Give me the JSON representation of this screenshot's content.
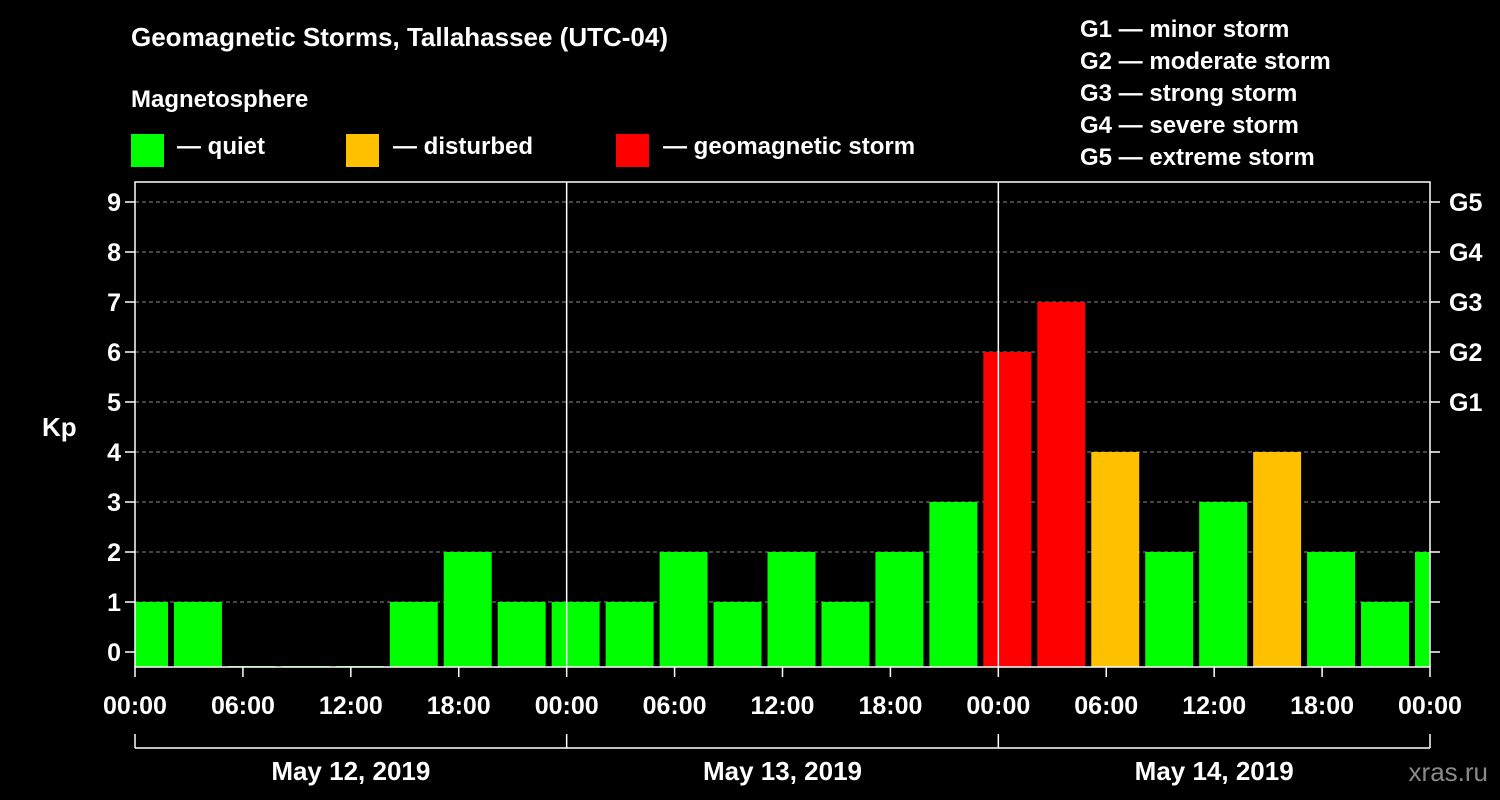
{
  "title": "Geomagnetic Storms, Tallahassee (UTC-04)",
  "subtitle": "Magnetosphere",
  "legend": [
    {
      "label": "— quiet",
      "color": "#00ff00"
    },
    {
      "label": "— disturbed",
      "color": "#ffc000"
    },
    {
      "label": "— geomagnetic storm",
      "color": "#ff0000"
    }
  ],
  "storm_scale": [
    "G1 — minor storm",
    "G2 — moderate storm",
    "G3 — strong storm",
    "G4 — severe storm",
    "G5 — extreme storm"
  ],
  "watermark": "xras.ru",
  "colors": {
    "quiet": "#00ff00",
    "disturbed": "#ffc000",
    "storm": "#ff0000",
    "background": "#000000",
    "grid": "#888888"
  },
  "chart_data": {
    "type": "bar",
    "title": "Geomagnetic Storms, Tallahassee (UTC-04)",
    "ylabel": "Kp",
    "ylim": [
      0,
      9
    ],
    "yticks": [
      "0",
      "1",
      "2",
      "3",
      "4",
      "5",
      "6",
      "7",
      "8",
      "9"
    ],
    "right_ticks": [
      {
        "kp": 5,
        "label": "G1"
      },
      {
        "kp": 6,
        "label": "G2"
      },
      {
        "kp": 7,
        "label": "G3"
      },
      {
        "kp": 8,
        "label": "G4"
      },
      {
        "kp": 9,
        "label": "G5"
      }
    ],
    "x_range_hours": [
      0,
      72
    ],
    "xticks": [
      "00:00",
      "06:00",
      "12:00",
      "18:00",
      "00:00",
      "06:00",
      "12:00",
      "18:00",
      "00:00",
      "06:00",
      "12:00",
      "18:00",
      "00:00"
    ],
    "days": [
      "May 12, 2019",
      "May 13, 2019",
      "May 14, 2019"
    ],
    "bars": [
      {
        "start": 0,
        "end": 2,
        "kp": 1,
        "level": "quiet"
      },
      {
        "start": 2,
        "end": 5,
        "kp": 1,
        "level": "quiet"
      },
      {
        "start": 5,
        "end": 8,
        "kp": 0,
        "level": "quiet"
      },
      {
        "start": 8,
        "end": 11,
        "kp": 0,
        "level": "quiet"
      },
      {
        "start": 11,
        "end": 14,
        "kp": 0,
        "level": "quiet"
      },
      {
        "start": 14,
        "end": 17,
        "kp": 1,
        "level": "quiet"
      },
      {
        "start": 17,
        "end": 20,
        "kp": 2,
        "level": "quiet"
      },
      {
        "start": 20,
        "end": 23,
        "kp": 1,
        "level": "quiet"
      },
      {
        "start": 23,
        "end": 26,
        "kp": 1,
        "level": "quiet"
      },
      {
        "start": 26,
        "end": 29,
        "kp": 1,
        "level": "quiet"
      },
      {
        "start": 29,
        "end": 32,
        "kp": 2,
        "level": "quiet"
      },
      {
        "start": 32,
        "end": 35,
        "kp": 1,
        "level": "quiet"
      },
      {
        "start": 35,
        "end": 38,
        "kp": 2,
        "level": "quiet"
      },
      {
        "start": 38,
        "end": 41,
        "kp": 1,
        "level": "quiet"
      },
      {
        "start": 41,
        "end": 44,
        "kp": 2,
        "level": "quiet"
      },
      {
        "start": 44,
        "end": 47,
        "kp": 3,
        "level": "quiet"
      },
      {
        "start": 47,
        "end": 50,
        "kp": 6,
        "level": "storm"
      },
      {
        "start": 50,
        "end": 53,
        "kp": 7,
        "level": "storm"
      },
      {
        "start": 53,
        "end": 56,
        "kp": 4,
        "level": "disturbed"
      },
      {
        "start": 56,
        "end": 59,
        "kp": 2,
        "level": "quiet"
      },
      {
        "start": 59,
        "end": 62,
        "kp": 3,
        "level": "quiet"
      },
      {
        "start": 62,
        "end": 65,
        "kp": 4,
        "level": "disturbed"
      },
      {
        "start": 65,
        "end": 68,
        "kp": 2,
        "level": "quiet"
      },
      {
        "start": 68,
        "end": 71,
        "kp": 1,
        "level": "quiet"
      },
      {
        "start": 71,
        "end": 72,
        "kp": 2,
        "level": "quiet"
      }
    ]
  }
}
